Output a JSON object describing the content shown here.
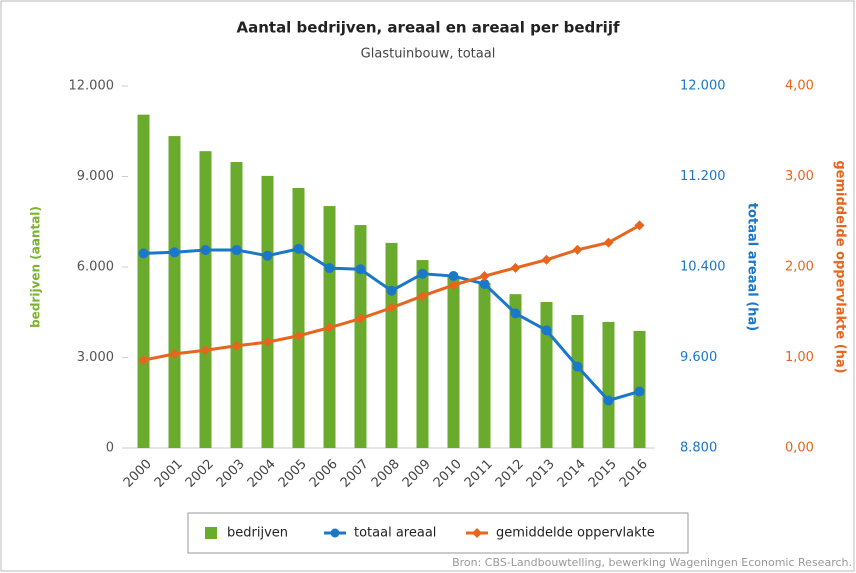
{
  "chart_data": {
    "type": "bar-line",
    "title": "Aantal bedrijven, areaal en areaal per bedrijf",
    "subtitle": "Glastuinbouw, totaal",
    "ylabel": "bedrijven (aantal)",
    "y2label": "totaal areaal (ha)",
    "y3label": "gemiddelde oppervlakte (ha)",
    "source": "Bron: CBS-Landbouwtelling, bewerking Wageningen Economic Research.",
    "categories": [
      "2000",
      "2001",
      "2002",
      "2003",
      "2004",
      "2005",
      "2006",
      "2007",
      "2008",
      "2009",
      "2010",
      "2011",
      "2012",
      "2013",
      "2014",
      "2015",
      "2016"
    ],
    "series": [
      {
        "name": "bedrijven",
        "type": "bar",
        "color": "#6aab2e",
        "axis": "y",
        "values": [
          11050,
          10340,
          9840,
          9480,
          9020,
          8620,
          8020,
          7390,
          6800,
          6230,
          5700,
          5470,
          5100,
          4840,
          4410,
          4180,
          3880
        ]
      },
      {
        "name": "totaal areaal",
        "type": "line",
        "color": "#1a77c9",
        "axis": "y2",
        "marker": "circle",
        "values": [
          10520,
          10530,
          10550,
          10550,
          10500,
          10560,
          10390,
          10380,
          10190,
          10340,
          10320,
          10250,
          9990,
          9840,
          9520,
          9220,
          9300
        ]
      },
      {
        "name": "gemiddelde oppervlakte",
        "type": "line",
        "color": "#e8651d",
        "axis": "y3",
        "marker": "diamond",
        "values": [
          0.97,
          1.04,
          1.08,
          1.13,
          1.17,
          1.24,
          1.33,
          1.43,
          1.55,
          1.68,
          1.8,
          1.9,
          1.99,
          2.08,
          2.19,
          2.27,
          2.46
        ]
      }
    ],
    "ylim": [
      0,
      12000
    ],
    "yticks": [
      0,
      {
        "value": 3000,
        "label": "3.000"
      },
      {
        "value": 6000,
        "label": "6.000"
      },
      {
        "value": 9000,
        "label": "9.000"
      },
      {
        "value": 12000,
        "label": "12.000"
      }
    ],
    "y2lim": [
      8800,
      12000
    ],
    "y2ticks": [
      {
        "value": 8800,
        "label": "8.800"
      },
      {
        "value": 9600,
        "label": "9.600"
      },
      {
        "value": 10400,
        "label": "10.400"
      },
      {
        "value": 11200,
        "label": "11.200"
      },
      {
        "value": 12000,
        "label": "12.000"
      }
    ],
    "y3lim": [
      0,
      4
    ],
    "y3ticks": [
      {
        "value": 0,
        "label": "0,00"
      },
      {
        "value": 1,
        "label": "1,00"
      },
      {
        "value": 2,
        "label": "2,00"
      },
      {
        "value": 3,
        "label": "3,00"
      },
      {
        "value": 4,
        "label": "4,00"
      }
    ],
    "grid": false
  }
}
